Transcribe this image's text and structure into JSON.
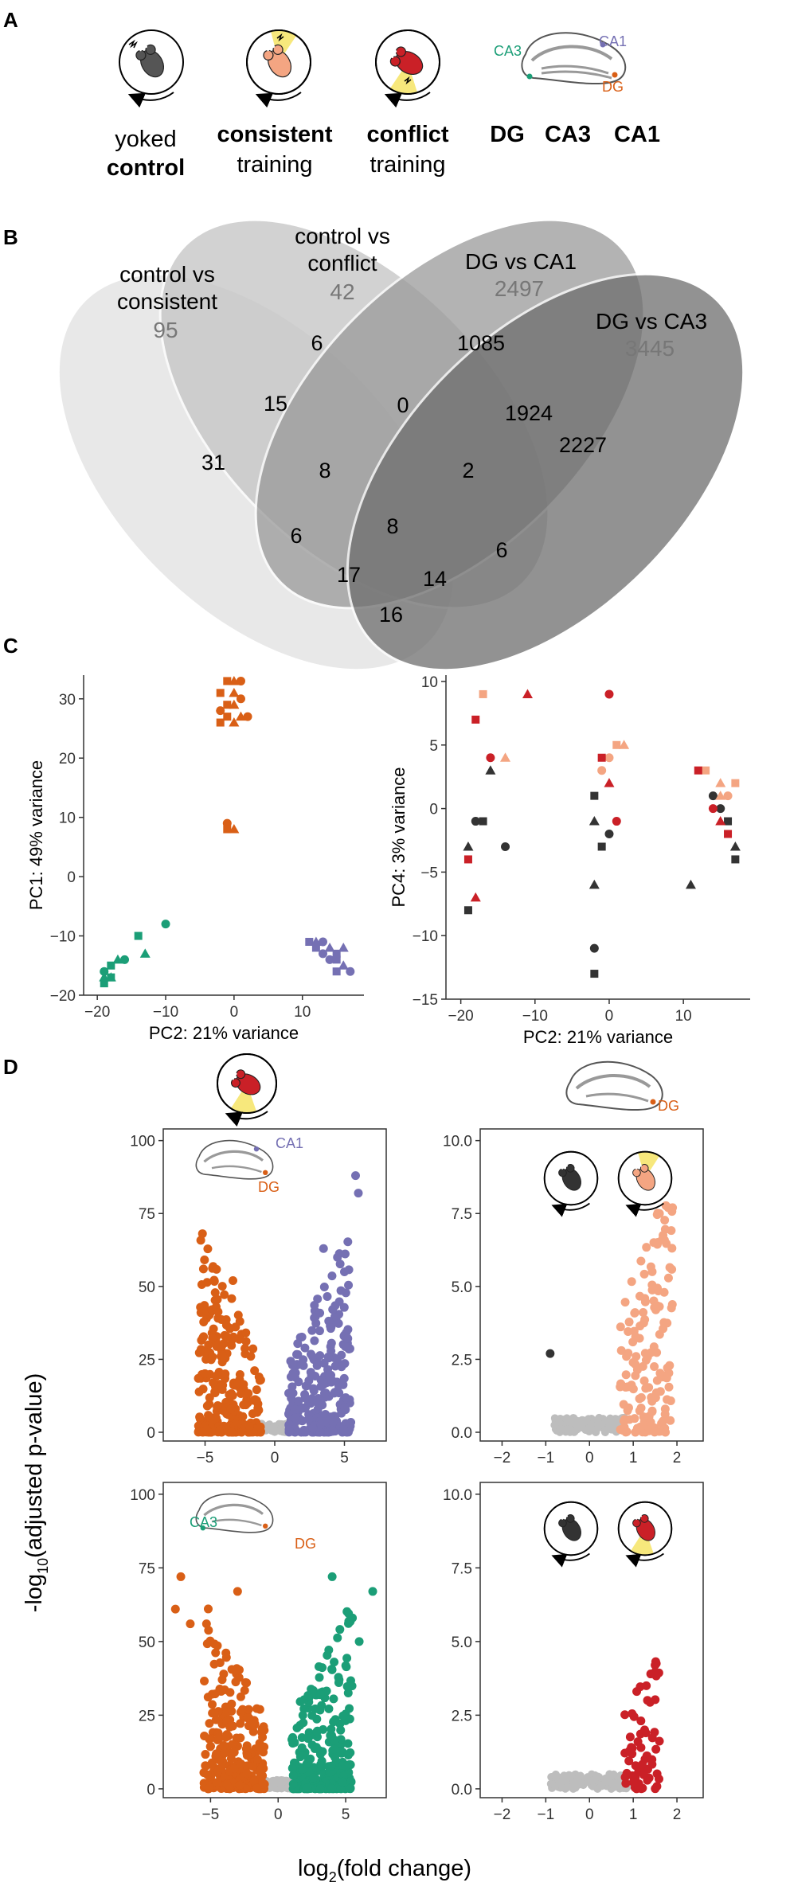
{
  "panels": {
    "a": "A",
    "b": "B",
    "c": "C",
    "d": "D"
  },
  "panelA": {
    "groups": [
      {
        "line1": "yoked",
        "line2": "control",
        "bold_line": 2
      },
      {
        "line1": "consistent",
        "line2": "training",
        "bold_line": 1
      },
      {
        "line1": "conflict",
        "line2": "training",
        "bold_line": 1
      }
    ],
    "regions": [
      "DG",
      "CA3",
      "CA1"
    ],
    "hippo_labels": {
      "ca3": "CA3",
      "ca1": "CA1",
      "dg": "DG"
    }
  },
  "panelB": {
    "sets": [
      {
        "title1": "control vs",
        "title2": "consistent",
        "count": "95"
      },
      {
        "title1": "control vs",
        "title2": "conflict",
        "count": "42"
      },
      {
        "title1": "DG vs CA1",
        "title2": "",
        "count": "2497"
      },
      {
        "title1": "DG vs CA3",
        "title2": "",
        "count": "3445"
      }
    ],
    "cells": [
      "31",
      "6",
      "1085",
      "2227",
      "15",
      "0",
      "1924",
      "8",
      "2",
      "6",
      "8",
      "6",
      "17",
      "14",
      "16"
    ]
  },
  "colors": {
    "DG": "#d95f16",
    "CA3": "#1b9e77",
    "CA1": "#7570b3",
    "control": "#333333",
    "consistent": "#f4a582",
    "conflict": "#ca2027",
    "ns": "#bdbdbd"
  },
  "chart_data": [
    {
      "type": "scatter",
      "xlabel": "PC2: 21% variance",
      "ylabel": "PC1: 49% variance",
      "xticks": [
        "−20",
        "−10",
        "0",
        "10"
      ],
      "yticks": [
        "−20",
        "−10",
        "0",
        "10",
        "20",
        "30"
      ],
      "xlim": [
        -22,
        19
      ],
      "ylim": [
        -20,
        34
      ],
      "series": [
        {
          "group": "DG",
          "points": [
            [
              -1,
              33
            ],
            [
              0,
              33
            ],
            [
              1,
              33
            ],
            [
              -2,
              31
            ],
            [
              0,
              31
            ],
            [
              1,
              30
            ],
            [
              -1,
              29
            ],
            [
              0,
              29
            ],
            [
              -2,
              28
            ],
            [
              -1,
              27
            ],
            [
              1,
              27
            ],
            [
              2,
              27
            ],
            [
              -2,
              26
            ],
            [
              0,
              26
            ],
            [
              -1,
              9
            ],
            [
              -1,
              8
            ],
            [
              0,
              8
            ]
          ]
        },
        {
          "group": "CA3",
          "points": [
            [
              -19,
              -18
            ],
            [
              -18,
              -17
            ],
            [
              -19,
              -16
            ],
            [
              -18,
              -15
            ],
            [
              -17,
              -14
            ],
            [
              -16,
              -14
            ],
            [
              -14,
              -10
            ],
            [
              -13,
              -13
            ],
            [
              -10,
              -8
            ],
            [
              -18,
              -17
            ],
            [
              -19,
              -17
            ]
          ]
        },
        {
          "group": "CA1",
          "points": [
            [
              11,
              -11
            ],
            [
              12,
              -11
            ],
            [
              13,
              -11
            ],
            [
              12,
              -12
            ],
            [
              14,
              -12
            ],
            [
              13,
              -13
            ],
            [
              15,
              -13
            ],
            [
              16,
              -12
            ],
            [
              14,
              -14
            ],
            [
              15,
              -14
            ],
            [
              16,
              -15
            ],
            [
              17,
              -16
            ],
            [
              15,
              -16
            ]
          ]
        }
      ]
    },
    {
      "type": "scatter",
      "xlabel": "PC2: 21% variance",
      "ylabel": "PC4: 3% variance",
      "xticks": [
        "−20",
        "−10",
        "0",
        "10"
      ],
      "yticks": [
        "−15",
        "−10",
        "−5",
        "0",
        "5",
        "10"
      ],
      "xlim": [
        -22,
        19
      ],
      "ylim": [
        -15,
        10.5
      ],
      "series": [
        {
          "group": "control",
          "points": [
            [
              -19,
              -8
            ],
            [
              -19,
              -3
            ],
            [
              -18,
              -1
            ],
            [
              -17,
              -1
            ],
            [
              -16,
              3
            ],
            [
              -14,
              -3
            ],
            [
              -2,
              1
            ],
            [
              -2,
              -1
            ],
            [
              0,
              -2
            ],
            [
              -1,
              -3
            ],
            [
              -2,
              -6
            ],
            [
              -2,
              -11
            ],
            [
              -2,
              -13
            ],
            [
              11,
              -6
            ],
            [
              14,
              1
            ],
            [
              16,
              -1
            ],
            [
              17,
              -3
            ],
            [
              15,
              0
            ],
            [
              17,
              -4
            ]
          ]
        },
        {
          "group": "consistent",
          "points": [
            [
              -17,
              9
            ],
            [
              -14,
              4
            ],
            [
              0,
              4
            ],
            [
              1,
              5
            ],
            [
              2,
              5
            ],
            [
              -1,
              3
            ],
            [
              13,
              3
            ],
            [
              15,
              2
            ],
            [
              16,
              1
            ],
            [
              17,
              2
            ],
            [
              15,
              1
            ]
          ]
        },
        {
          "group": "conflict",
          "points": [
            [
              -18,
              7
            ],
            [
              -11,
              9
            ],
            [
              -16,
              4
            ],
            [
              -19,
              -4
            ],
            [
              -18,
              -7
            ],
            [
              0,
              9
            ],
            [
              -1,
              4
            ],
            [
              0,
              2
            ],
            [
              1,
              -1
            ],
            [
              12,
              3
            ],
            [
              15,
              -1
            ],
            [
              14,
              0
            ],
            [
              16,
              -2
            ]
          ]
        }
      ]
    },
    {
      "type": "scatter",
      "xlabel": "log2(fold change)",
      "ylabel": "-log10(adjusted p-value)",
      "comparison": "DG vs CA1",
      "xticks": [
        "−5",
        "0",
        "5"
      ],
      "yticks": [
        "0",
        "25",
        "50",
        "75",
        "100"
      ],
      "xlim": [
        -8,
        8
      ],
      "ylim": [
        -3,
        104
      ]
    },
    {
      "type": "scatter",
      "xlabel": "log2(fold change)",
      "ylabel": "-log10(adjusted p-value)",
      "comparison": "control vs consistent (DG)",
      "xticks": [
        "−2",
        "−1",
        "0",
        "1",
        "2"
      ],
      "yticks": [
        "0.0",
        "2.5",
        "5.0",
        "7.5",
        "10.0"
      ],
      "xlim": [
        -2.5,
        2.6
      ],
      "ylim": [
        -0.3,
        10.4
      ]
    },
    {
      "type": "scatter",
      "xlabel": "log2(fold change)",
      "ylabel": "-log10(adjusted p-value)",
      "comparison": "DG vs CA3",
      "xticks": [
        "−5",
        "0",
        "5"
      ],
      "yticks": [
        "0",
        "25",
        "50",
        "75",
        "100"
      ],
      "xlim": [
        -8.5,
        8
      ],
      "ylim": [
        -3,
        104
      ]
    },
    {
      "type": "scatter",
      "xlabel": "log2(fold change)",
      "ylabel": "-log10(adjusted p-value)",
      "comparison": "control vs conflict (DG)",
      "xticks": [
        "−2",
        "−1",
        "0",
        "1",
        "2"
      ],
      "yticks": [
        "0.0",
        "2.5",
        "5.0",
        "7.5",
        "10.0"
      ],
      "xlim": [
        -2.5,
        2.6
      ],
      "ylim": [
        -0.3,
        10.4
      ]
    }
  ],
  "panelD": {
    "ylabel_main": "-log",
    "ylabel_sub": "10",
    "ylabel_rest": "(adjusted p-value)",
    "xlabel_main": "log",
    "xlabel_sub": "2",
    "xlabel_rest": "(fold change)",
    "hippo_labels": {
      "ca1": "CA1",
      "ca3": "CA3",
      "dg": "DG"
    }
  }
}
